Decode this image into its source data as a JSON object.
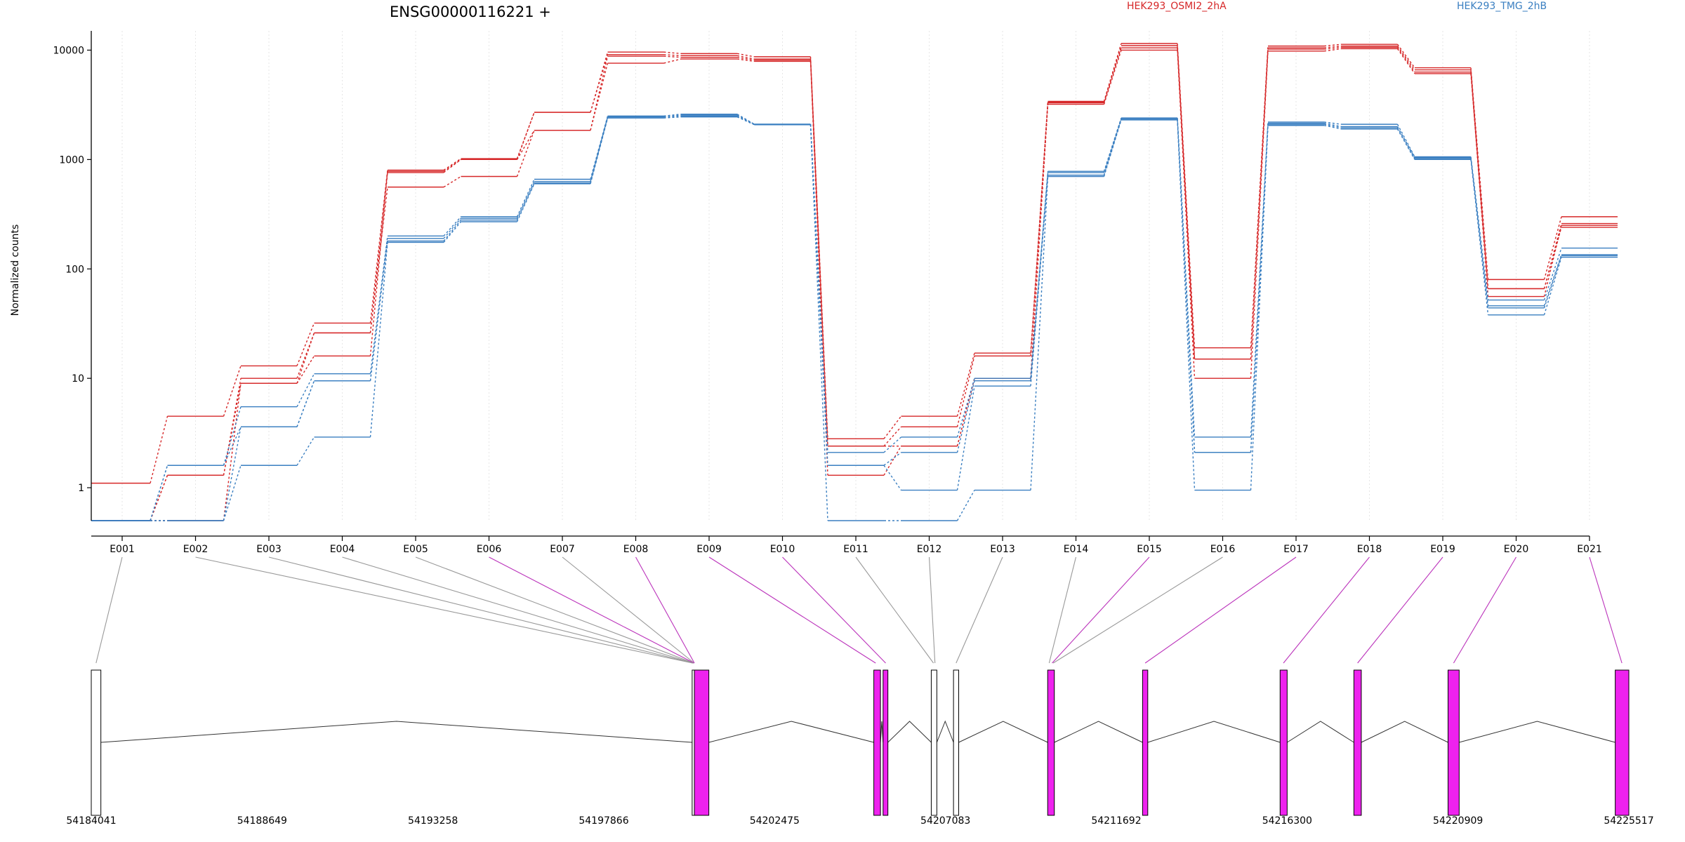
{
  "chart_data": {
    "type": "line",
    "title": "ENSG00000116221 +",
    "ylabel": "Normalized counts",
    "xlabel": "",
    "y_scale": "log",
    "ylim": [
      0.5,
      15000
    ],
    "y_ticks": [
      1,
      10,
      100,
      1000,
      10000
    ],
    "y_tick_labels": [
      "1",
      "10",
      "100",
      "1000",
      "10000"
    ],
    "grid": "vertical lines at each exon",
    "legend_position": "top-right",
    "categories": [
      "E001",
      "E002",
      "E003",
      "E004",
      "E005",
      "E006",
      "E007",
      "E008",
      "E009",
      "E010",
      "E011",
      "E012",
      "E013",
      "E014",
      "E015",
      "E016",
      "E017",
      "E018",
      "E019",
      "E020",
      "E021"
    ],
    "colors": {
      "HEK293_OSMI2_2hA": "#d62728",
      "HEK293_TMG_2hB": "#3a7fc1",
      "exon_highlight": "#ee22ee",
      "exon_normal": "#ffffff"
    },
    "series": [
      {
        "name": "HEK293_OSMI2_2hA",
        "values": [
          1.1,
          4.5,
          13,
          32,
          800,
          1020,
          2700,
          9600,
          9300,
          8700,
          2.8,
          4.5,
          17,
          3400,
          11500,
          19,
          10900,
          11300,
          6900,
          80,
          300
        ]
      },
      {
        "name": "HEK293_OSMI2_2hA",
        "values": [
          0.5,
          1.3,
          10,
          26,
          780,
          1000,
          2700,
          9100,
          8900,
          8300,
          2.4,
          3.6,
          16,
          3350,
          11000,
          15,
          10500,
          10900,
          6600,
          66,
          260
        ]
      },
      {
        "name": "HEK293_OSMI2_2hA",
        "values": [
          0.5,
          1.3,
          9,
          16,
          760,
          1000,
          1850,
          8800,
          8600,
          8100,
          2.4,
          2.4,
          10,
          3300,
          10500,
          15,
          10200,
          10600,
          6300,
          56,
          250
        ]
      },
      {
        "name": "HEK293_OSMI2_2hA",
        "values": [
          0.5,
          0.5,
          9,
          26,
          560,
          700,
          1850,
          7600,
          8300,
          7900,
          1.3,
          2.4,
          10,
          3200,
          10000,
          10,
          9800,
          10300,
          6100,
          66,
          240
        ]
      },
      {
        "name": "HEK293_TMG_2hB",
        "values": [
          0.5,
          1.6,
          5.5,
          11,
          200,
          300,
          660,
          2500,
          2600,
          2100,
          2.1,
          2.9,
          10,
          780,
          2400,
          2.9,
          2200,
          2100,
          1060,
          52,
          155
        ]
      },
      {
        "name": "HEK293_TMG_2hB",
        "values": [
          0.5,
          1.6,
          3.6,
          9.5,
          190,
          290,
          630,
          2450,
          2550,
          2100,
          1.6,
          2.1,
          9.5,
          760,
          2350,
          2.1,
          2150,
          2000,
          1040,
          46,
          135
        ]
      },
      {
        "name": "HEK293_TMG_2hB",
        "values": [
          0.5,
          0.5,
          3.6,
          9.5,
          180,
          280,
          610,
          2400,
          2500,
          2100,
          1.6,
          0.95,
          8.5,
          720,
          2350,
          2.1,
          2100,
          1950,
          1020,
          44,
          132
        ]
      },
      {
        "name": "HEK293_TMG_2hB",
        "values": [
          0.5,
          0.5,
          1.6,
          2.9,
          175,
          270,
          600,
          2400,
          2450,
          2080,
          0.5,
          0.5,
          0.95,
          700,
          2300,
          0.95,
          2050,
          1900,
          1000,
          38,
          128
        ]
      }
    ],
    "gene_model": {
      "coordinate_labels": [
        "54184041",
        "54188649",
        "54193258",
        "54197866",
        "54202475",
        "54207083",
        "54211692",
        "54216300",
        "54220909",
        "54225517"
      ],
      "coordinate_range": [
        54184041,
        54225517
      ],
      "exons": [
        {
          "id": "E001",
          "start": 54184041,
          "end": 54184300,
          "highlighted": false
        },
        {
          "id": "E002-E008",
          "start": 54200250,
          "end": 54200310,
          "highlighted": false
        },
        {
          "id": "E009",
          "start": 54200310,
          "end": 54200700,
          "highlighted": true
        },
        {
          "id": "E010",
          "start": 54205150,
          "end": 54205330,
          "highlighted": true
        },
        {
          "id": "E011",
          "start": 54205400,
          "end": 54205530,
          "highlighted": true
        },
        {
          "id": "E012",
          "start": 54206700,
          "end": 54206850,
          "highlighted": false
        },
        {
          "id": "E013",
          "start": 54207300,
          "end": 54207440,
          "highlighted": false
        },
        {
          "id": "E014-E015",
          "start": 54209840,
          "end": 54210020,
          "highlighted": true
        },
        {
          "id": "E016",
          "start": 54212400,
          "end": 54212540,
          "highlighted": true
        },
        {
          "id": "E017",
          "start": 54216110,
          "end": 54216300,
          "highlighted": true
        },
        {
          "id": "E018",
          "start": 54218100,
          "end": 54218300,
          "highlighted": true
        },
        {
          "id": "E019",
          "start": 54220640,
          "end": 54220940,
          "highlighted": true
        },
        {
          "id": "E020",
          "start": 54225150,
          "end": 54225517,
          "highlighted": true
        }
      ],
      "exon_links": [
        {
          "label": "E001",
          "target": 54184170,
          "highlighted": false
        },
        {
          "label": "E002",
          "target": 54200260,
          "highlighted": false
        },
        {
          "label": "E003",
          "target": 54200270,
          "highlighted": false
        },
        {
          "label": "E004",
          "target": 54200280,
          "highlighted": false
        },
        {
          "label": "E005",
          "target": 54200290,
          "highlighted": false
        },
        {
          "label": "E006",
          "target": 54200300,
          "highlighted": true
        },
        {
          "label": "E007",
          "target": 54200305,
          "highlighted": false
        },
        {
          "label": "E008",
          "target": 54200310,
          "highlighted": true
        },
        {
          "label": "E009",
          "target": 54205200,
          "highlighted": true
        },
        {
          "label": "E010",
          "target": 54205470,
          "highlighted": true
        },
        {
          "label": "E011",
          "target": 54206760,
          "highlighted": false
        },
        {
          "label": "E012",
          "target": 54206800,
          "highlighted": false
        },
        {
          "label": "E013",
          "target": 54207370,
          "highlighted": false
        },
        {
          "label": "E014",
          "target": 54209880,
          "highlighted": false
        },
        {
          "label": "E015",
          "target": 54209960,
          "highlighted": true
        },
        {
          "label": "E016",
          "target": 54209990,
          "highlighted": false
        },
        {
          "label": "E017",
          "target": 54212470,
          "highlighted": true
        },
        {
          "label": "E018",
          "target": 54216200,
          "highlighted": true
        },
        {
          "label": "E019",
          "target": 54218200,
          "highlighted": true
        },
        {
          "label": "E020",
          "target": 54220790,
          "highlighted": true
        },
        {
          "label": "E021",
          "target": 54225330,
          "highlighted": true
        }
      ],
      "intron_apex_fraction": [
        0.5,
        0.5,
        0.5,
        0.5,
        0.5,
        0.5,
        0.5,
        0.5,
        0.5,
        0.5,
        0.5,
        0.5
      ]
    }
  }
}
